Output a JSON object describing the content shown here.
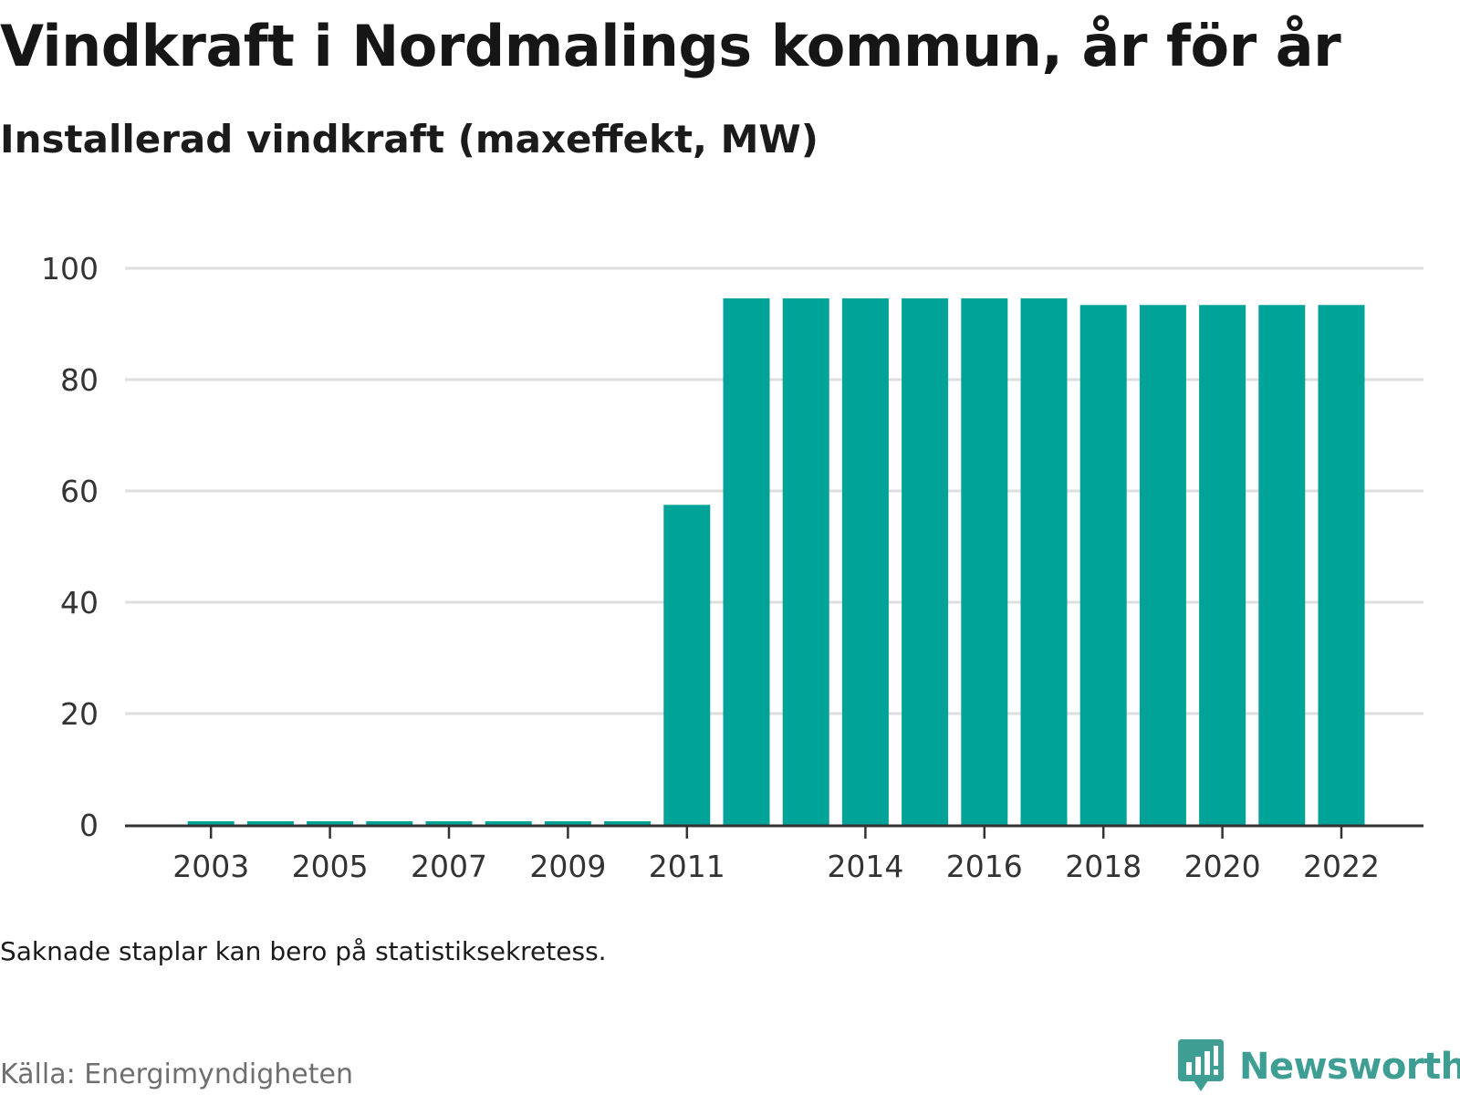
{
  "header": {
    "title": "Vindkraft i Nordmalings kommun, år för år",
    "subtitle": "Installerad vindkraft (maxeffekt, MW)"
  },
  "footer": {
    "note": "Saknade staplar kan bero på statistiksekretess.",
    "source": "Källa: Energimyndigheten",
    "brand": "Newsworthy",
    "brand_icon": "bar-chart-speech-bubble-icon"
  },
  "colors": {
    "bar": "#00a398",
    "grid": "#dedede",
    "axis": "#333333",
    "brand": "#3f9e93"
  },
  "chart_data": {
    "type": "bar",
    "title": "Vindkraft i Nordmalings kommun, år för år",
    "subtitle": "Installerad vindkraft (maxeffekt, MW)",
    "categories": [
      "2002",
      "2003",
      "2004",
      "2005",
      "2006",
      "2007",
      "2008",
      "2009",
      "2010",
      "2011",
      "2012",
      "2013",
      "2014",
      "2015",
      "2016",
      "2017",
      "2018",
      "2019",
      "2020",
      "2021",
      "2022"
    ],
    "values": [
      0,
      0.5,
      0.5,
      0.5,
      0.5,
      0.5,
      0.5,
      0.5,
      0.5,
      57.5,
      94.6,
      94.6,
      94.6,
      94.6,
      94.6,
      94.6,
      93.4,
      93.4,
      93.4,
      93.4,
      93.4
    ],
    "x_tick_labels": [
      "2003",
      "2005",
      "2007",
      "2009",
      "2011",
      "2014",
      "2016",
      "2018",
      "2020",
      "2022"
    ],
    "y_ticks": [
      0,
      20,
      40,
      60,
      80,
      100
    ],
    "ylim": [
      0,
      100
    ],
    "xlabel": "",
    "ylabel": "",
    "grid": true
  }
}
